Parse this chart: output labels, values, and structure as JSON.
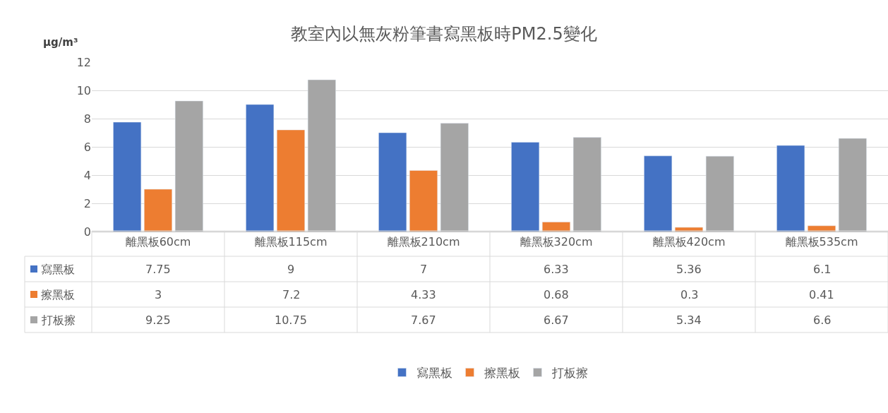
{
  "chart_data": {
    "type": "bar",
    "title": "教室內以無灰粉筆書寫黑板時PM2.5變化",
    "ylabel": "μg/m³",
    "categories": [
      "離黑板60cm",
      "離黑板115cm",
      "離黑板210cm",
      "離黑板320cm",
      "離黑板420cm",
      "離黑板535cm"
    ],
    "series": [
      {
        "name": "寫黑板",
        "color": "#4472c4",
        "values": [
          7.75,
          9,
          7,
          6.33,
          5.36,
          6.1
        ]
      },
      {
        "name": "擦黑板",
        "color": "#ed7d31",
        "values": [
          3,
          7.2,
          4.33,
          0.68,
          0.3,
          0.41
        ]
      },
      {
        "name": "打板擦",
        "color": "#a5a5a5",
        "values": [
          9.25,
          10.75,
          7.67,
          6.67,
          5.34,
          6.6
        ]
      }
    ],
    "ylim": [
      0,
      12
    ],
    "yticks": [
      0,
      2,
      4,
      6,
      8,
      10,
      12
    ],
    "grid": "y",
    "legend": "bottom",
    "data_labels": true
  }
}
